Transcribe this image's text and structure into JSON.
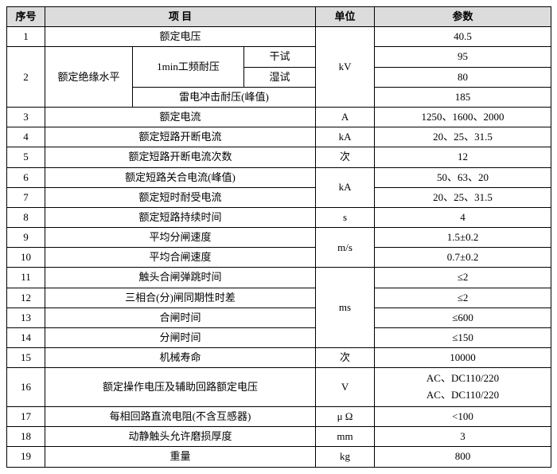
{
  "headers": {
    "no": "序号",
    "item": "项   目",
    "unit": "单位",
    "param": "参数"
  },
  "rows": {
    "r1": {
      "no": "1",
      "item": "额定电压",
      "val": "40.5"
    },
    "r2": {
      "no": "2",
      "item_l1": "额定绝缘水平",
      "item_l2a": "1min工频耐压",
      "item_l3a": "干试",
      "val_a": "95",
      "item_l3b": "湿试",
      "val_b": "80",
      "item_l2b": "雷电冲击耐压(峰值)",
      "val_c": "185",
      "unit_group": "kV"
    },
    "r3": {
      "no": "3",
      "item": "额定电流",
      "unit": "A",
      "val": "1250、1600、2000"
    },
    "r4": {
      "no": "4",
      "item": "额定短路开断电流",
      "unit": "kA",
      "val": "20、25、31.5"
    },
    "r5": {
      "no": "5",
      "item": "额定短路开断电流次数",
      "unit": "次",
      "val": "12"
    },
    "r6": {
      "no": "6",
      "item": "额定短路关合电流(峰值)",
      "unit_group": "kA",
      "val": "50、63、20"
    },
    "r7": {
      "no": "7",
      "item": "额定短时耐受电流",
      "val": "20、25、31.5"
    },
    "r8": {
      "no": "8",
      "item": "额定短路持续时间",
      "unit": "s",
      "val": "4"
    },
    "r9": {
      "no": "9",
      "item": "平均分闸速度",
      "unit_group": "m/s",
      "val": "1.5±0.2"
    },
    "r10": {
      "no": "10",
      "item": "平均合闸速度",
      "val": "0.7±0.2"
    },
    "r11": {
      "no": "11",
      "item": "触头合闸弹跳时间",
      "unit_group": "ms",
      "val": "≤2"
    },
    "r12": {
      "no": "12",
      "item": "三相合(分)闸同期性时差",
      "val": "≤2"
    },
    "r13": {
      "no": "13",
      "item": "合闸时间",
      "val": "≤600"
    },
    "r14": {
      "no": "14",
      "item": "分闸时间",
      "val": "≤150"
    },
    "r15": {
      "no": "15",
      "item": "机械寿命",
      "unit": "次",
      "val": "10000"
    },
    "r16": {
      "no": "16",
      "item": "额定操作电压及辅助回路额定电压",
      "unit": "V",
      "val_line1": "AC、DC110/220",
      "val_line2": "AC、DC110/220"
    },
    "r17": {
      "no": "17",
      "item": "每相回路直流电阻(不含互感器)",
      "unit": "μ Ω",
      "val": "<100"
    },
    "r18": {
      "no": "18",
      "item": "动静触头允许磨损厚度",
      "unit": "mm",
      "val": "3"
    },
    "r19": {
      "no": "19",
      "item": "重量",
      "unit": "kg",
      "val": "800"
    }
  }
}
